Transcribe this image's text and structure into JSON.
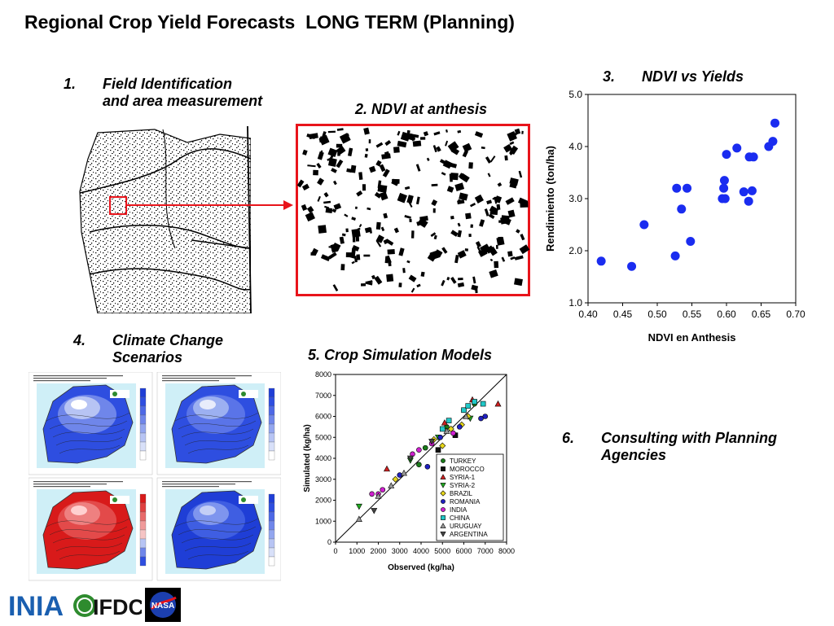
{
  "title": "Regional Crop Yield Forecasts  LONG TERM (Planning)",
  "items": {
    "i1": {
      "num": "1.",
      "line1": "Field Identification",
      "line2": "and area measurement"
    },
    "i2": {
      "text": "2. NDVI at anthesis"
    },
    "i3": {
      "num": "3.",
      "text": "NDVI vs Yields"
    },
    "i4": {
      "num": "4.",
      "line1": "Climate Change",
      "line2": "Scenarios"
    },
    "i5": {
      "text": "5.  Crop Simulation Models"
    },
    "i6": {
      "num": "6.",
      "line1": "Consulting with Planning",
      "line2": "Agencies"
    }
  },
  "colors": {
    "highlight": "#e8141b",
    "ndvi_points": "#1a2cf0",
    "map_red": "#d81a1a",
    "map_blue": "#2e4ee0"
  },
  "logos": {
    "inia": "INIA",
    "ifdc": "IFDC",
    "nasa": "NASA"
  },
  "chart_data": [
    {
      "type": "scatter",
      "xlabel": "NDVI en Anthesis",
      "ylabel": "Rendimiento (ton/ha)",
      "xlim": [
        0.4,
        0.7
      ],
      "ylim": [
        1.0,
        5.0
      ],
      "xticks": [
        "0.40",
        "0.45",
        "0.50",
        "0.55",
        "0.60",
        "0.65",
        "0.70"
      ],
      "yticks": [
        "1.0",
        "2.0",
        "3.0",
        "4.0",
        "5.0"
      ],
      "grid": false,
      "points": [
        [
          0.419,
          1.8
        ],
        [
          0.463,
          1.7
        ],
        [
          0.481,
          2.5
        ],
        [
          0.526,
          1.9
        ],
        [
          0.528,
          3.2
        ],
        [
          0.535,
          2.8
        ],
        [
          0.543,
          3.2
        ],
        [
          0.548,
          2.18
        ],
        [
          0.594,
          3.0
        ],
        [
          0.598,
          3.0
        ],
        [
          0.596,
          3.2
        ],
        [
          0.597,
          3.35
        ],
        [
          0.6,
          3.85
        ],
        [
          0.615,
          3.97
        ],
        [
          0.625,
          3.13
        ],
        [
          0.632,
          2.95
        ],
        [
          0.633,
          3.8
        ],
        [
          0.637,
          3.15
        ],
        [
          0.639,
          3.8
        ],
        [
          0.661,
          4.0
        ],
        [
          0.667,
          4.1
        ],
        [
          0.67,
          4.45
        ]
      ]
    },
    {
      "type": "scatter",
      "xlabel": "Observed (kg/ha)",
      "ylabel": "Simulated (kg/ha)",
      "xlim": [
        0,
        8000
      ],
      "ylim": [
        0,
        8000
      ],
      "xticks": [
        "0",
        "1000",
        "2000",
        "3000",
        "4000",
        "5000",
        "6000",
        "7000",
        "8000"
      ],
      "yticks": [
        "0",
        "1000",
        "2000",
        "3000",
        "4000",
        "5000",
        "6000",
        "7000",
        "8000"
      ],
      "legend_position": "bottom-right",
      "series": [
        {
          "name": "TURKEY",
          "marker": "circle",
          "color": "#1a7a1a",
          "points": [
            [
              3900,
              3700
            ],
            [
              4200,
              4500
            ],
            [
              5200,
              5500
            ],
            [
              6000,
              6300
            ],
            [
              6500,
              6600
            ]
          ]
        },
        {
          "name": "MOROCCO",
          "marker": "square",
          "color": "#111111",
          "points": [
            [
              4800,
              4400
            ],
            [
              5600,
              5100
            ]
          ]
        },
        {
          "name": "SYRIA-1",
          "marker": "triangle-up",
          "color": "#d02020",
          "points": [
            [
              2400,
              3500
            ],
            [
              5100,
              5700
            ],
            [
              6400,
              6800
            ],
            [
              7600,
              6600
            ]
          ]
        },
        {
          "name": "SYRIA-2",
          "marker": "triangle-down",
          "color": "#22aa22",
          "points": [
            [
              1100,
              1700
            ],
            [
              3500,
              3900
            ],
            [
              4800,
              5000
            ],
            [
              6300,
              5900
            ]
          ]
        },
        {
          "name": "BRAZIL",
          "marker": "diamond",
          "color": "#e6d619",
          "points": [
            [
              2800,
              3000
            ],
            [
              4600,
              4900
            ],
            [
              5000,
              4600
            ],
            [
              5400,
              5400
            ],
            [
              5900,
              5600
            ],
            [
              6200,
              6000
            ]
          ]
        },
        {
          "name": "ROMANIA",
          "marker": "circle",
          "color": "#2020c0",
          "points": [
            [
              3000,
              3200
            ],
            [
              4300,
              3600
            ],
            [
              4900,
              5000
            ],
            [
              5800,
              5500
            ],
            [
              6800,
              5900
            ],
            [
              7000,
              6000
            ]
          ]
        },
        {
          "name": "INDIA",
          "marker": "circle",
          "color": "#d020d0",
          "points": [
            [
              1700,
              2300
            ],
            [
              2000,
              2300
            ],
            [
              2200,
              2500
            ],
            [
              3600,
              4200
            ],
            [
              3900,
              4400
            ],
            [
              4500,
              4700
            ],
            [
              5500,
              5200
            ]
          ]
        },
        {
          "name": "CHINA",
          "marker": "square",
          "color": "#20c8c8",
          "points": [
            [
              5000,
              5400
            ],
            [
              5300,
              5800
            ],
            [
              6000,
              6300
            ],
            [
              6200,
              6500
            ],
            [
              6500,
              6700
            ],
            [
              6900,
              6600
            ]
          ]
        },
        {
          "name": "URUGUAY",
          "marker": "triangle-up",
          "color": "#999999",
          "points": [
            [
              1100,
              1100
            ],
            [
              2000,
              2200
            ],
            [
              2600,
              2700
            ],
            [
              3200,
              3300
            ],
            [
              5200,
              5300
            ],
            [
              6100,
              6000
            ]
          ]
        },
        {
          "name": "ARGENTINA",
          "marker": "triangle-down",
          "color": "#444444",
          "points": [
            [
              1800,
              1500
            ],
            [
              3500,
              4000
            ],
            [
              4500,
              4800
            ]
          ]
        }
      ]
    }
  ]
}
